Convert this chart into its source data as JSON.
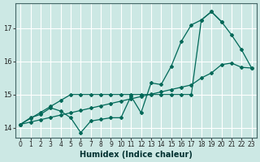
{
  "xlabel": "Humidex (Indice chaleur)",
  "bg_color": "#cce8e4",
  "grid_color": "#ffffff",
  "line_color": "#006858",
  "xlim": [
    -0.5,
    23.5
  ],
  "ylim": [
    13.7,
    17.75
  ],
  "yticks": [
    14,
    15,
    16,
    17
  ],
  "xticks": [
    0,
    1,
    2,
    3,
    4,
    5,
    6,
    7,
    8,
    9,
    10,
    11,
    12,
    13,
    14,
    15,
    16,
    17,
    18,
    19,
    20,
    21,
    22,
    23
  ],
  "series1": [
    14.1,
    14.3,
    14.4,
    14.6,
    14.5,
    14.3,
    13.85,
    14.2,
    14.25,
    14.3,
    14.3,
    14.95,
    14.45,
    15.35,
    15.3,
    15.85,
    16.6,
    17.1,
    17.25,
    17.5,
    17.2,
    16.8,
    16.35,
    15.8
  ],
  "series2": [
    14.1,
    14.28,
    14.46,
    14.64,
    14.82,
    15.0,
    15.0,
    15.0,
    15.0,
    15.0,
    15.0,
    15.0,
    15.0,
    15.0,
    15.0,
    15.0,
    15.0,
    15.0,
    17.25,
    17.5,
    17.2,
    null,
    null,
    null
  ],
  "series3": [
    14.1,
    14.17,
    14.24,
    14.31,
    14.38,
    14.45,
    14.52,
    14.59,
    14.66,
    14.73,
    14.8,
    14.87,
    14.94,
    15.01,
    15.08,
    15.15,
    15.22,
    15.29,
    15.5,
    15.65,
    15.9,
    15.95,
    15.82,
    15.8
  ]
}
